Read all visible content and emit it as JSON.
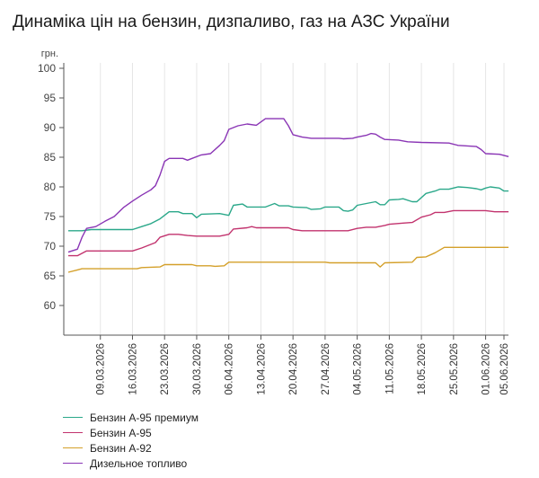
{
  "title": "Динаміка цін на бензин, дизпаливо, газ на АЗС України",
  "chart_data": {
    "type": "line",
    "title": "Динаміка цін на бензин, дизпаливо, газ на АЗС України",
    "ylabel": "грн.",
    "ylim": [
      55,
      100
    ],
    "yticks": [
      60,
      65,
      70,
      75,
      80,
      85,
      90,
      95,
      100
    ],
    "xlim": [
      "2026-03-02",
      "2026-06-05"
    ],
    "xticks": [
      "09.03.2026",
      "16.03.2026",
      "23.03.2026",
      "30.03.2026",
      "06.04.2026",
      "13.04.2026",
      "20.04.2026",
      "27.04.2026",
      "04.05.2026",
      "11.05.2026",
      "18.05.2026",
      "25.05.2026",
      "01.06.2026",
      "05.06.2026"
    ],
    "grid": "vertical",
    "legend_position": "bottom-left",
    "series": [
      {
        "name": "Бензин А-95 премиум",
        "color": "#2ba88a",
        "points": [
          [
            "2026-03-02",
            72.6
          ],
          [
            "2026-03-05",
            72.6
          ],
          [
            "2026-03-07",
            72.8
          ],
          [
            "2026-03-16",
            72.8
          ],
          [
            "2026-03-18",
            73.3
          ],
          [
            "2026-03-20",
            73.8
          ],
          [
            "2026-03-22",
            74.6
          ],
          [
            "2026-03-24",
            75.8
          ],
          [
            "2026-03-26",
            75.8
          ],
          [
            "2026-03-27",
            75.5
          ],
          [
            "2026-03-29",
            75.5
          ],
          [
            "2026-03-30",
            74.8
          ],
          [
            "2026-03-31",
            75.4
          ],
          [
            "2026-04-04",
            75.5
          ],
          [
            "2026-04-06",
            75.2
          ],
          [
            "2026-04-07",
            76.9
          ],
          [
            "2026-04-09",
            77.1
          ],
          [
            "2026-04-10",
            76.6
          ],
          [
            "2026-04-14",
            76.6
          ],
          [
            "2026-04-16",
            77.2
          ],
          [
            "2026-04-17",
            76.8
          ],
          [
            "2026-04-19",
            76.8
          ],
          [
            "2026-04-20",
            76.6
          ],
          [
            "2026-04-23",
            76.5
          ],
          [
            "2026-04-24",
            76.2
          ],
          [
            "2026-04-26",
            76.3
          ],
          [
            "2026-04-27",
            76.6
          ],
          [
            "2026-04-30",
            76.6
          ],
          [
            "2026-05-01",
            76.0
          ],
          [
            "2026-05-02",
            75.9
          ],
          [
            "2026-05-03",
            76.1
          ],
          [
            "2026-05-04",
            76.9
          ],
          [
            "2026-05-06",
            77.2
          ],
          [
            "2026-05-08",
            77.5
          ],
          [
            "2026-05-09",
            77.0
          ],
          [
            "2026-05-10",
            77.0
          ],
          [
            "2026-05-11",
            77.8
          ],
          [
            "2026-05-13",
            77.9
          ],
          [
            "2026-05-14",
            78.0
          ],
          [
            "2026-05-16",
            77.5
          ],
          [
            "2026-05-17",
            77.5
          ],
          [
            "2026-05-19",
            78.9
          ],
          [
            "2026-05-21",
            79.3
          ],
          [
            "2026-05-22",
            79.6
          ],
          [
            "2026-05-24",
            79.6
          ],
          [
            "2026-05-26",
            80.0
          ],
          [
            "2026-05-28",
            79.9
          ],
          [
            "2026-05-30",
            79.7
          ],
          [
            "2026-05-31",
            79.5
          ],
          [
            "2026-06-01",
            79.8
          ],
          [
            "2026-06-02",
            80.0
          ],
          [
            "2026-06-04",
            79.8
          ],
          [
            "2026-06-05",
            79.3
          ],
          [
            "2026-06-06",
            79.3
          ]
        ]
      },
      {
        "name": "Бензин А-95",
        "color": "#c2336e",
        "points": [
          [
            "2026-03-02",
            68.4
          ],
          [
            "2026-03-04",
            68.4
          ],
          [
            "2026-03-06",
            69.2
          ],
          [
            "2026-03-16",
            69.2
          ],
          [
            "2026-03-18",
            69.7
          ],
          [
            "2026-03-21",
            70.6
          ],
          [
            "2026-03-22",
            71.5
          ],
          [
            "2026-03-24",
            72.0
          ],
          [
            "2026-03-26",
            72.0
          ],
          [
            "2026-03-28",
            71.8
          ],
          [
            "2026-03-30",
            71.7
          ],
          [
            "2026-04-04",
            71.7
          ],
          [
            "2026-04-06",
            72.0
          ],
          [
            "2026-04-07",
            72.9
          ],
          [
            "2026-04-10",
            73.1
          ],
          [
            "2026-04-11",
            73.3
          ],
          [
            "2026-04-12",
            73.1
          ],
          [
            "2026-04-19",
            73.1
          ],
          [
            "2026-04-20",
            72.8
          ],
          [
            "2026-04-22",
            72.6
          ],
          [
            "2026-05-02",
            72.6
          ],
          [
            "2026-05-04",
            73.0
          ],
          [
            "2026-05-06",
            73.2
          ],
          [
            "2026-05-08",
            73.2
          ],
          [
            "2026-05-10",
            73.5
          ],
          [
            "2026-05-11",
            73.7
          ],
          [
            "2026-05-14",
            73.9
          ],
          [
            "2026-05-16",
            74.0
          ],
          [
            "2026-05-18",
            74.9
          ],
          [
            "2026-05-20",
            75.3
          ],
          [
            "2026-05-21",
            75.7
          ],
          [
            "2026-05-23",
            75.7
          ],
          [
            "2026-05-25",
            76.0
          ],
          [
            "2026-06-01",
            76.0
          ],
          [
            "2026-06-03",
            75.8
          ],
          [
            "2026-06-06",
            75.8
          ]
        ]
      },
      {
        "name": "Бензин А-92",
        "color": "#d4a02a",
        "points": [
          [
            "2026-03-02",
            65.6
          ],
          [
            "2026-03-04",
            66.0
          ],
          [
            "2026-03-05",
            66.2
          ],
          [
            "2026-03-17",
            66.2
          ],
          [
            "2026-03-18",
            66.4
          ],
          [
            "2026-03-22",
            66.5
          ],
          [
            "2026-03-23",
            66.9
          ],
          [
            "2026-03-29",
            66.9
          ],
          [
            "2026-03-30",
            66.7
          ],
          [
            "2026-04-02",
            66.7
          ],
          [
            "2026-04-03",
            66.6
          ],
          [
            "2026-04-05",
            66.7
          ],
          [
            "2026-04-06",
            67.3
          ],
          [
            "2026-04-27",
            67.3
          ],
          [
            "2026-04-28",
            67.2
          ],
          [
            "2026-05-08",
            67.2
          ],
          [
            "2026-05-09",
            66.5
          ],
          [
            "2026-05-10",
            67.2
          ],
          [
            "2026-05-16",
            67.3
          ],
          [
            "2026-05-17",
            68.1
          ],
          [
            "2026-05-19",
            68.2
          ],
          [
            "2026-05-21",
            68.9
          ],
          [
            "2026-05-23",
            69.8
          ],
          [
            "2026-06-06",
            69.8
          ]
        ]
      },
      {
        "name": "Дизельное топливо",
        "color": "#8a35b5",
        "points": [
          [
            "2026-03-02",
            69.0
          ],
          [
            "2026-03-04",
            69.5
          ],
          [
            "2026-03-05",
            71.5
          ],
          [
            "2026-03-06",
            73.0
          ],
          [
            "2026-03-08",
            73.3
          ],
          [
            "2026-03-10",
            74.2
          ],
          [
            "2026-03-12",
            75.0
          ],
          [
            "2026-03-14",
            76.5
          ],
          [
            "2026-03-16",
            77.6
          ],
          [
            "2026-03-18",
            78.6
          ],
          [
            "2026-03-20",
            79.5
          ],
          [
            "2026-03-21",
            80.2
          ],
          [
            "2026-03-22",
            82.0
          ],
          [
            "2026-03-23",
            84.3
          ],
          [
            "2026-03-24",
            84.8
          ],
          [
            "2026-03-27",
            84.8
          ],
          [
            "2026-03-28",
            84.5
          ],
          [
            "2026-03-29",
            84.8
          ],
          [
            "2026-03-31",
            85.4
          ],
          [
            "2026-04-02",
            85.6
          ],
          [
            "2026-04-04",
            87.0
          ],
          [
            "2026-04-05",
            87.8
          ],
          [
            "2026-04-06",
            89.7
          ],
          [
            "2026-04-08",
            90.3
          ],
          [
            "2026-04-10",
            90.6
          ],
          [
            "2026-04-12",
            90.4
          ],
          [
            "2026-04-14",
            91.5
          ],
          [
            "2026-04-18",
            91.5
          ],
          [
            "2026-04-19",
            90.3
          ],
          [
            "2026-04-20",
            88.8
          ],
          [
            "2026-04-22",
            88.4
          ],
          [
            "2026-04-24",
            88.2
          ],
          [
            "2026-04-30",
            88.2
          ],
          [
            "2026-05-01",
            88.1
          ],
          [
            "2026-05-03",
            88.2
          ],
          [
            "2026-05-04",
            88.4
          ],
          [
            "2026-05-06",
            88.7
          ],
          [
            "2026-05-07",
            89.0
          ],
          [
            "2026-05-08",
            88.9
          ],
          [
            "2026-05-09",
            88.4
          ],
          [
            "2026-05-10",
            88.0
          ],
          [
            "2026-05-13",
            87.9
          ],
          [
            "2026-05-15",
            87.6
          ],
          [
            "2026-05-18",
            87.5
          ],
          [
            "2026-05-24",
            87.4
          ],
          [
            "2026-05-26",
            87.0
          ],
          [
            "2026-05-30",
            86.8
          ],
          [
            "2026-05-31",
            86.3
          ],
          [
            "2026-06-01",
            85.6
          ],
          [
            "2026-06-04",
            85.5
          ],
          [
            "2026-06-06",
            85.1
          ]
        ]
      }
    ]
  }
}
